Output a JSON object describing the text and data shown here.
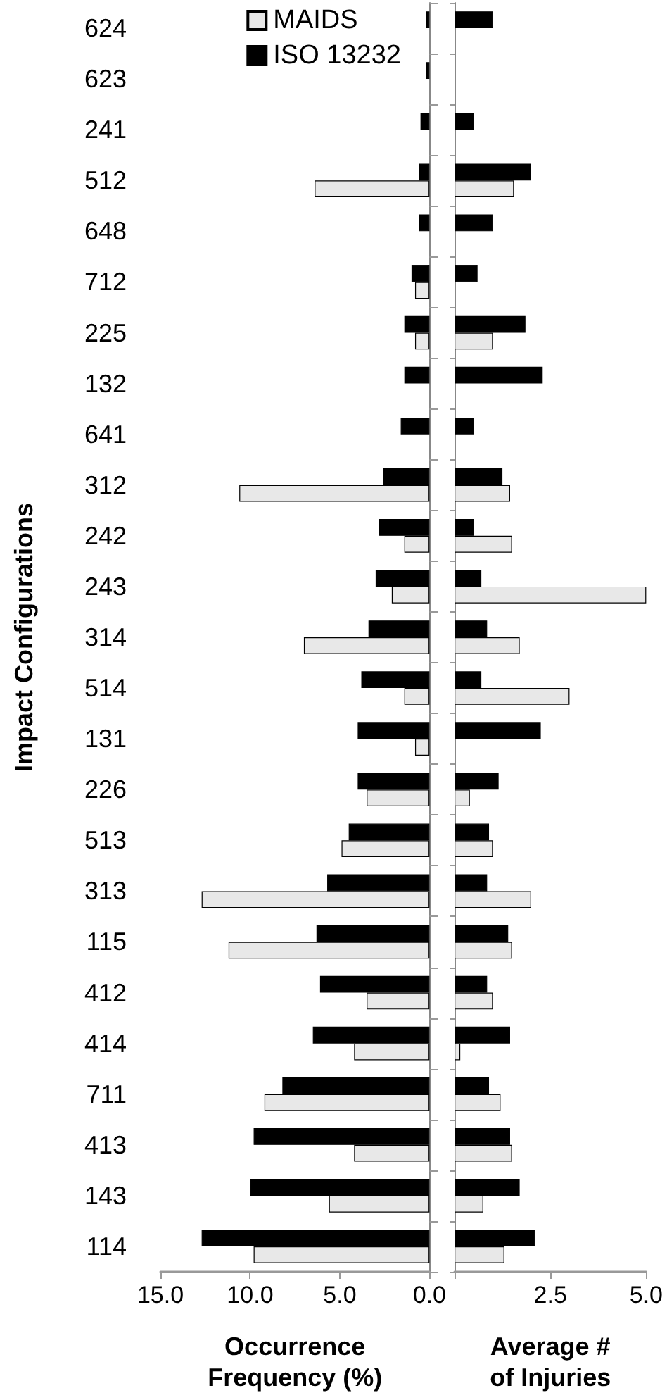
{
  "chart_data": [
    {
      "type": "bar",
      "orientation": "horizontal",
      "xlabel": "Occurrence Frequency (%)",
      "ylabel": "Impact Configurations",
      "legend": "top right",
      "categories": [
        "624",
        "623",
        "241",
        "512",
        "648",
        "712",
        "225",
        "132",
        "641",
        "312",
        "242",
        "243",
        "314",
        "514",
        "131",
        "226",
        "513",
        "313",
        "115",
        "412",
        "414",
        "711",
        "413",
        "143",
        "114"
      ],
      "xlim": [
        15,
        0
      ],
      "xticks": [
        {
          "value": 15,
          "label": "15.0"
        },
        {
          "value": 10,
          "label": "10.0"
        },
        {
          "value": 5,
          "label": "5.0"
        },
        {
          "value": 0,
          "label": "0.0"
        }
      ],
      "series": [
        {
          "name": "MAIDS",
          "color": "#e8e8e8",
          "values": [
            null,
            null,
            null,
            6.4,
            null,
            0.8,
            0.8,
            null,
            null,
            10.6,
            1.4,
            2.1,
            7.0,
            1.4,
            0.8,
            3.5,
            4.9,
            12.7,
            11.2,
            3.5,
            4.2,
            9.2,
            4.2,
            5.6,
            9.8
          ]
        },
        {
          "name": "ISO 13232",
          "color": "#000000",
          "values": [
            0.2,
            0.2,
            0.5,
            0.6,
            0.6,
            1.0,
            1.4,
            1.4,
            1.6,
            2.6,
            2.8,
            3.0,
            3.4,
            3.8,
            4.0,
            4.0,
            4.5,
            5.7,
            6.3,
            6.1,
            6.5,
            8.2,
            9.8,
            10.0,
            12.7
          ]
        }
      ]
    },
    {
      "type": "bar",
      "orientation": "horizontal",
      "xlabel": "Average # of Injuries",
      "tick_labels": "x",
      "categories": [
        "624",
        "623",
        "241",
        "512",
        "648",
        "712",
        "225",
        "132",
        "641",
        "312",
        "242",
        "243",
        "314",
        "514",
        "131",
        "226",
        "513",
        "313",
        "115",
        "412",
        "414",
        "711",
        "413",
        "143",
        "114"
      ],
      "xlim": [
        0,
        5
      ],
      "xticks": [
        {
          "value": 0,
          "label": null
        },
        2.5,
        {
          "value": 5,
          "label": "5.0"
        }
      ],
      "series": [
        {
          "color": "#e8e8e8",
          "values": [
            null,
            null,
            null,
            1.55,
            null,
            null,
            1.0,
            null,
            null,
            1.45,
            1.5,
            5.0,
            1.7,
            3.0,
            null,
            0.4,
            1.0,
            2.0,
            1.5,
            1.0,
            0.15,
            1.2,
            1.5,
            0.75,
            1.3
          ]
        },
        {
          "color": "#000000",
          "values": [
            1.0,
            null,
            0.5,
            2.0,
            1.0,
            0.6,
            1.85,
            2.3,
            0.5,
            1.25,
            0.5,
            0.7,
            0.85,
            0.7,
            2.25,
            1.15,
            0.9,
            0.85,
            1.4,
            0.85,
            1.45,
            0.9,
            1.45,
            1.7,
            2.1
          ]
        }
      ]
    }
  ]
}
